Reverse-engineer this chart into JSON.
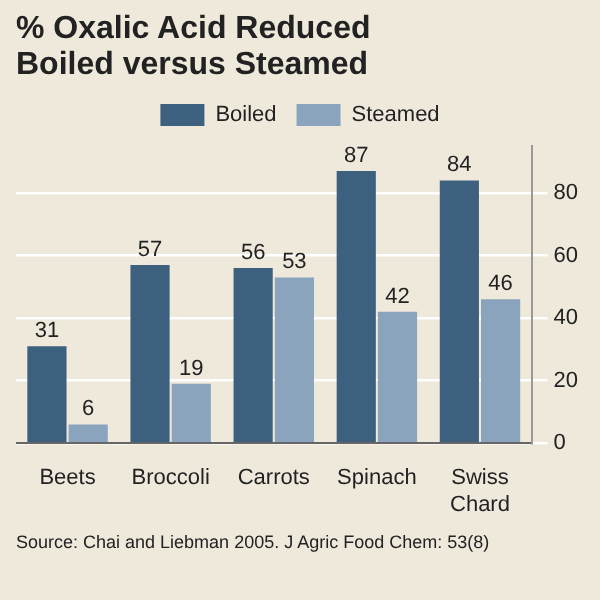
{
  "chart_data": {
    "type": "bar",
    "title": "% Oxalic Acid Reduced Boiled versus Steamed",
    "categories": [
      "Beets",
      "Broccoli",
      "Carrots",
      "Spinach",
      "Swiss Chard"
    ],
    "series": [
      {
        "name": "Boiled",
        "color": "#3e607f",
        "values": [
          31,
          57,
          56,
          87,
          84
        ]
      },
      {
        "name": "Steamed",
        "color": "#8ba4bd",
        "values": [
          6,
          19,
          53,
          42,
          46
        ]
      }
    ],
    "ylim": [
      0,
      95
    ],
    "yticks": [
      0,
      20,
      40,
      60,
      80
    ],
    "grid": "y",
    "legend": "top",
    "data_labels": true,
    "annotations": [
      "Source: Chai and Liebman 2005. J Agric Food Chem: 53(8)"
    ]
  }
}
